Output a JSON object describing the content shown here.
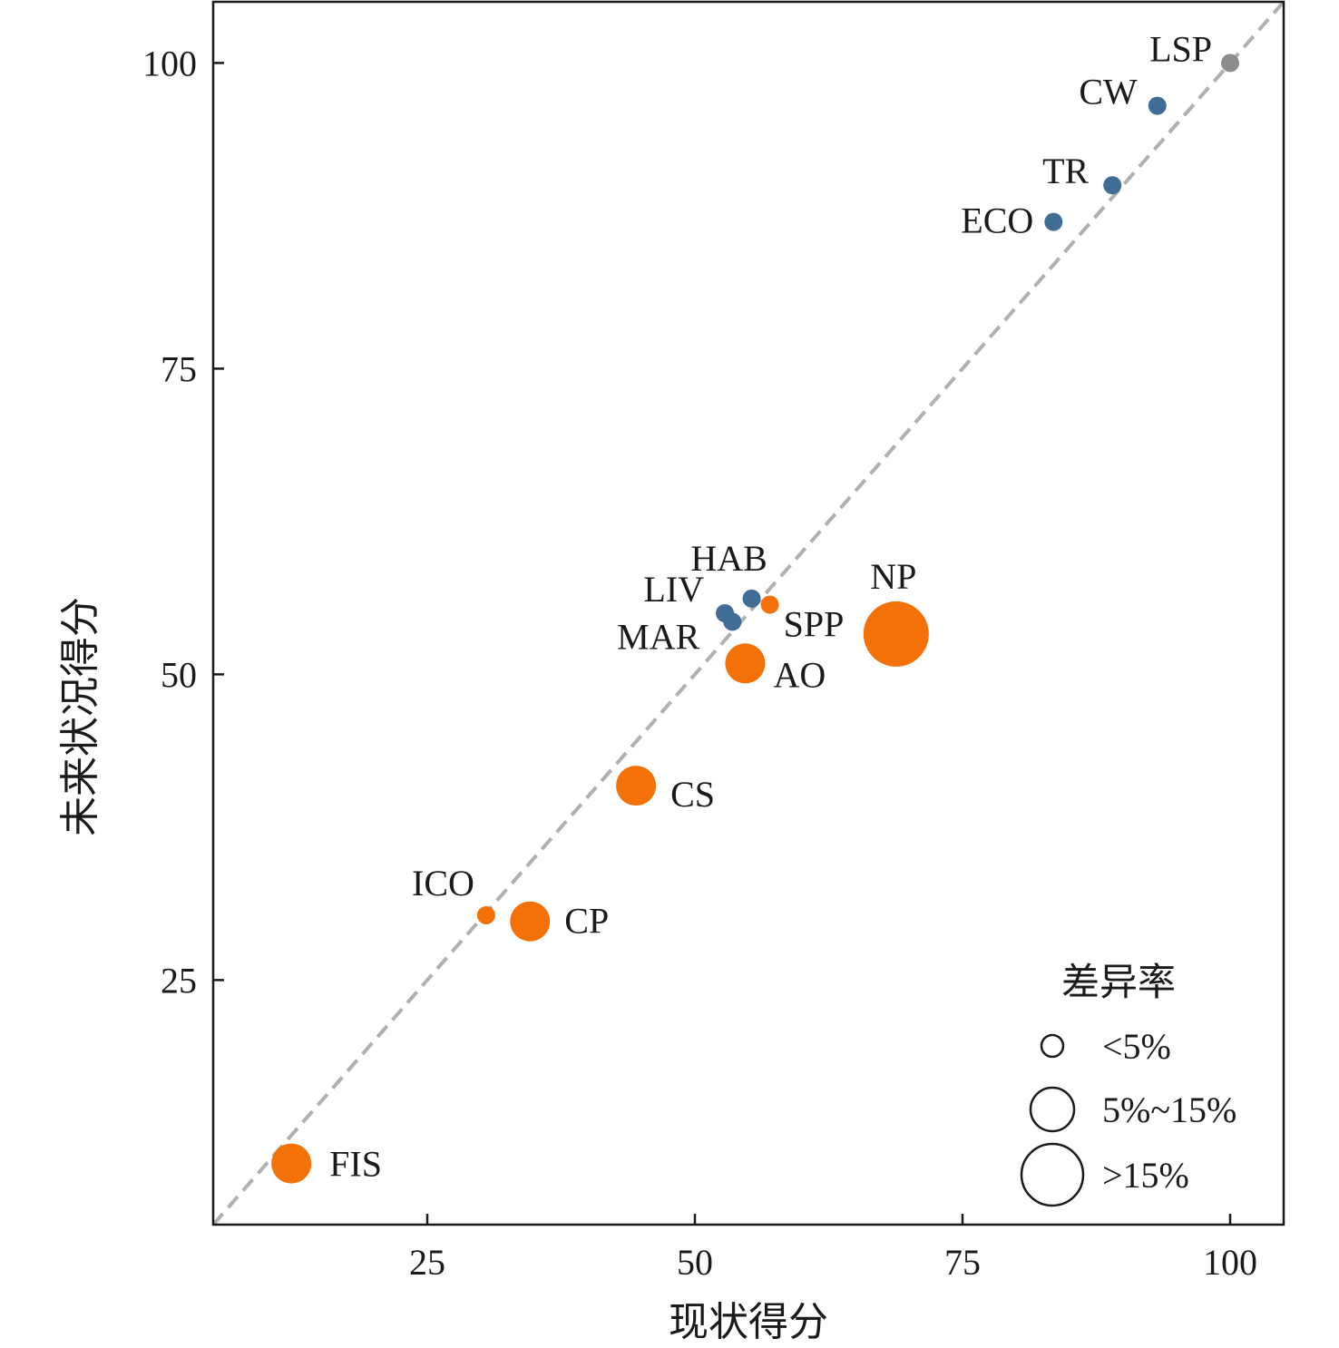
{
  "chart_data": {
    "type": "scatter",
    "title": "",
    "xlabel": "现状得分",
    "ylabel": "未来状况得分",
    "xlim": [
      5,
      105
    ],
    "ylim": [
      5,
      105
    ],
    "xticks": [
      25,
      50,
      75,
      100
    ],
    "yticks": [
      25,
      50,
      75,
      100
    ],
    "grid": false,
    "reference_line": "y = x (dashed gray)",
    "colors": {
      "decrease_or_small": "#3f6d96",
      "increase": "#f47108",
      "reference": "#8c8c8c",
      "reference_line": "#b0b0b0"
    },
    "points": [
      {
        "label": "LSP",
        "x": 100,
        "y": 100,
        "size_class": 0,
        "group": "reference"
      },
      {
        "label": "CW",
        "x": 93.2,
        "y": 96.5,
        "size_class": 0,
        "group": "decrease_or_small"
      },
      {
        "label": "TR",
        "x": 89,
        "y": 90,
        "size_class": 0,
        "group": "decrease_or_small"
      },
      {
        "label": "ECO",
        "x": 83.5,
        "y": 87,
        "size_class": 0,
        "group": "decrease_or_small"
      },
      {
        "label": "HAB",
        "x": 55.3,
        "y": 56.2,
        "size_class": 0,
        "group": "decrease_or_small"
      },
      {
        "label": "LIV",
        "x": 52.8,
        "y": 55.0,
        "size_class": 0,
        "group": "decrease_or_small"
      },
      {
        "label": "MAR",
        "x": 53.5,
        "y": 54.3,
        "size_class": 0,
        "group": "decrease_or_small"
      },
      {
        "label": "SPP",
        "x": 57.0,
        "y": 55.7,
        "size_class": 0,
        "group": "increase"
      },
      {
        "label": "NP",
        "x": 68.8,
        "y": 53.3,
        "size_class": 2,
        "group": "increase"
      },
      {
        "label": "AO",
        "x": 54.7,
        "y": 50.9,
        "size_class": 1,
        "group": "increase"
      },
      {
        "label": "CS",
        "x": 44.5,
        "y": 40.9,
        "size_class": 1,
        "group": "increase"
      },
      {
        "label": "ICO",
        "x": 30.5,
        "y": 30.3,
        "size_class": 0,
        "group": "increase"
      },
      {
        "label": "CP",
        "x": 34.6,
        "y": 29.8,
        "size_class": 1,
        "group": "increase"
      },
      {
        "label": "FIS",
        "x": 12.3,
        "y": 10.0,
        "size_class": 1,
        "group": "increase"
      }
    ],
    "size_legend": {
      "title": "差异率",
      "entries": [
        "<5%",
        "5%~15%",
        ">15%"
      ]
    }
  }
}
